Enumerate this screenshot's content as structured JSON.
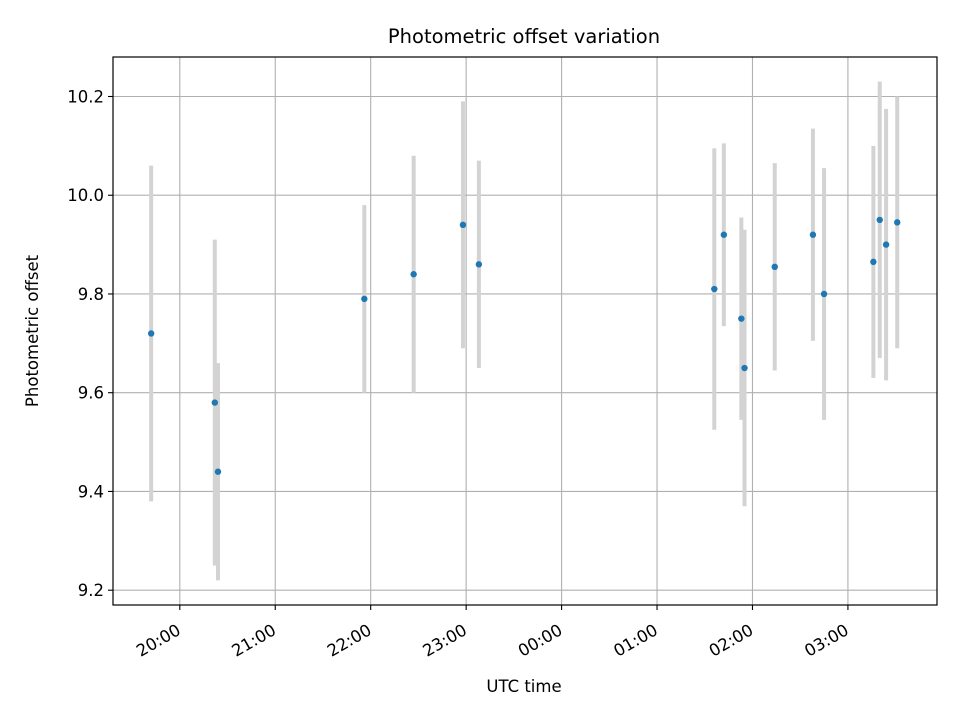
{
  "chart_data": {
    "type": "scatter",
    "title": "Photometric offset variation",
    "xlabel": "UTC time",
    "ylabel": "Photometric offset",
    "x_axis_kind": "time",
    "xlim": [
      "19:18",
      "03:56"
    ],
    "ylim": [
      9.17,
      10.28
    ],
    "x_ticks": [
      "20:00",
      "21:00",
      "22:00",
      "23:00",
      "00:00",
      "01:00",
      "02:00",
      "03:00"
    ],
    "y_ticks": [
      "9.2",
      "9.4",
      "9.6",
      "9.8",
      "10.0",
      "10.2"
    ],
    "grid": true,
    "legend": "none",
    "colors": {
      "points": "#1f77b4",
      "errorbars": "#d3d3d3",
      "grid": "#b0b0b0",
      "axes": "#000000"
    },
    "points": [
      {
        "x": "19:42",
        "y": 9.72,
        "err": 0.34
      },
      {
        "x": "20:22",
        "y": 9.58,
        "err": 0.33
      },
      {
        "x": "20:24",
        "y": 9.44,
        "err": 0.22
      },
      {
        "x": "21:56",
        "y": 9.79,
        "err": 0.19
      },
      {
        "x": "22:27",
        "y": 9.84,
        "err": 0.24
      },
      {
        "x": "22:58",
        "y": 9.94,
        "err": 0.25
      },
      {
        "x": "23:08",
        "y": 9.86,
        "err": 0.21
      },
      {
        "x": "01:36",
        "y": 9.81,
        "err": 0.285
      },
      {
        "x": "01:42",
        "y": 9.92,
        "err": 0.185
      },
      {
        "x": "01:53",
        "y": 9.75,
        "err": 0.205
      },
      {
        "x": "01:55",
        "y": 9.65,
        "err": 0.28
      },
      {
        "x": "02:14",
        "y": 9.855,
        "err": 0.21
      },
      {
        "x": "02:38",
        "y": 9.92,
        "err": 0.215
      },
      {
        "x": "02:45",
        "y": 9.8,
        "err": 0.255
      },
      {
        "x": "03:16",
        "y": 9.865,
        "err": 0.235
      },
      {
        "x": "03:20",
        "y": 9.95,
        "err": 0.28
      },
      {
        "x": "03:24",
        "y": 9.9,
        "err": 0.275
      },
      {
        "x": "03:31",
        "y": 9.945,
        "err": 0.255
      }
    ]
  }
}
